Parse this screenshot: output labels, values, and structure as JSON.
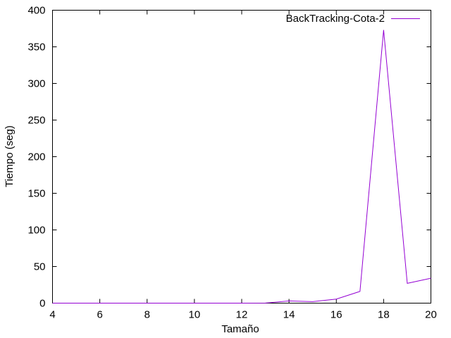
{
  "chart_data": {
    "type": "line",
    "title": "",
    "xlabel": "Tamaño",
    "ylabel": "Tiempo (seg)",
    "xlim": [
      4,
      20
    ],
    "ylim": [
      0,
      400
    ],
    "xticks": [
      4,
      6,
      8,
      10,
      12,
      14,
      16,
      18,
      20
    ],
    "yticks": [
      0,
      50,
      100,
      150,
      200,
      250,
      300,
      350,
      400
    ],
    "grid": false,
    "legend_position": "top-right",
    "series": [
      {
        "name": "BackTracking-Cota-2",
        "color": "#9400d3",
        "x": [
          4,
          5,
          6,
          7,
          8,
          9,
          10,
          11,
          12,
          13,
          14,
          15,
          16,
          17,
          18,
          19,
          20
        ],
        "y": [
          0,
          0,
          0,
          0,
          0,
          0,
          0,
          0,
          0,
          0.1,
          3,
          2,
          5.5,
          16,
          373,
          27,
          34
        ]
      }
    ]
  }
}
